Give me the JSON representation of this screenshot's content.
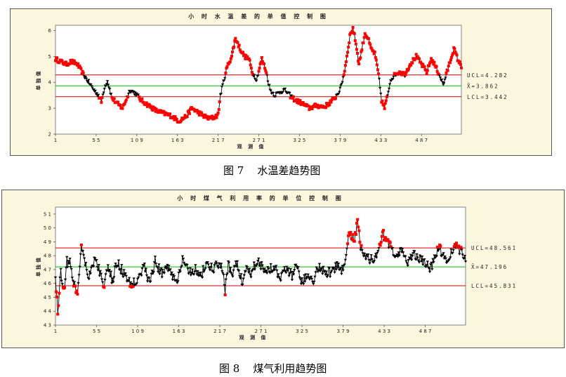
{
  "figures": [
    {
      "caption": "图 7    水温差趋势图",
      "chart_data": {
        "type": "line",
        "title": "小 时 水 温 差   的 单 值 控 制 图",
        "xlabel": "观 测 值",
        "ylabel": "单独值",
        "x_ticks": [
          1,
          55,
          109,
          163,
          217,
          271,
          325,
          379,
          433,
          487
        ],
        "y_ticks": [
          2,
          3,
          4,
          5,
          6
        ],
        "xlim": [
          1,
          540
        ],
        "ylim": [
          2,
          6.2
        ],
        "ucl": 4.282,
        "center": 3.862,
        "lcl": 3.442,
        "ucl_label": "UCL=4.282",
        "center_label": "X̄=3.862",
        "lcl_label": "LCL=3.442",
        "anchors": [
          [
            1,
            4.9
          ],
          [
            8,
            4.8
          ],
          [
            15,
            4.7
          ],
          [
            22,
            4.8
          ],
          [
            30,
            4.7
          ],
          [
            38,
            4.3
          ],
          [
            45,
            4.0
          ],
          [
            52,
            3.7
          ],
          [
            58,
            3.5
          ],
          [
            62,
            3.25
          ],
          [
            66,
            3.8
          ],
          [
            70,
            4.05
          ],
          [
            76,
            3.4
          ],
          [
            82,
            3.2
          ],
          [
            90,
            3.0
          ],
          [
            100,
            3.7
          ],
          [
            108,
            3.55
          ],
          [
            115,
            3.3
          ],
          [
            125,
            3.1
          ],
          [
            135,
            2.9
          ],
          [
            145,
            2.8
          ],
          [
            155,
            2.7
          ],
          [
            165,
            2.5
          ],
          [
            175,
            2.7
          ],
          [
            182,
            3.0
          ],
          [
            190,
            2.85
          ],
          [
            198,
            2.7
          ],
          [
            205,
            2.6
          ],
          [
            212,
            2.65
          ],
          [
            217,
            2.75
          ],
          [
            220,
            3.5
          ],
          [
            224,
            4.0
          ],
          [
            229,
            4.6
          ],
          [
            235,
            5.0
          ],
          [
            240,
            5.7
          ],
          [
            246,
            5.3
          ],
          [
            252,
            5.0
          ],
          [
            258,
            4.9
          ],
          [
            262,
            4.4
          ],
          [
            268,
            4.1
          ],
          [
            275,
            4.9
          ],
          [
            280,
            4.5
          ],
          [
            286,
            3.7
          ],
          [
            292,
            3.5
          ],
          [
            298,
            3.6
          ],
          [
            305,
            3.7
          ],
          [
            312,
            3.5
          ],
          [
            320,
            3.3
          ],
          [
            328,
            3.2
          ],
          [
            338,
            3.0
          ],
          [
            348,
            3.1
          ],
          [
            358,
            3.05
          ],
          [
            365,
            3.2
          ],
          [
            372,
            3.4
          ],
          [
            379,
            3.7
          ],
          [
            384,
            4.3
          ],
          [
            388,
            5.0
          ],
          [
            392,
            5.8
          ],
          [
            396,
            6.1
          ],
          [
            400,
            5.5
          ],
          [
            404,
            4.7
          ],
          [
            408,
            5.3
          ],
          [
            412,
            5.9
          ],
          [
            416,
            5.7
          ],
          [
            420,
            5.3
          ],
          [
            425,
            5.1
          ],
          [
            430,
            4.3
          ],
          [
            434,
            3.3
          ],
          [
            438,
            3.0
          ],
          [
            442,
            3.5
          ],
          [
            446,
            4.1
          ],
          [
            452,
            4.3
          ],
          [
            458,
            4.4
          ],
          [
            465,
            4.3
          ],
          [
            472,
            4.7
          ],
          [
            480,
            5.0
          ],
          [
            487,
            4.7
          ],
          [
            494,
            4.4
          ],
          [
            500,
            4.9
          ],
          [
            506,
            4.6
          ],
          [
            512,
            4.2
          ],
          [
            516,
            3.9
          ],
          [
            520,
            4.3
          ],
          [
            525,
            4.8
          ],
          [
            530,
            5.3
          ],
          [
            535,
            4.9
          ],
          [
            540,
            4.6
          ]
        ]
      }
    },
    {
      "caption": "图 8    煤气利用趋势图",
      "chart_data": {
        "type": "line",
        "title": "小 时 煤 气 利 用 率   的 单 位 控 制 图",
        "xlabel": "观 测 值",
        "ylabel": "单独值",
        "x_ticks": [
          1,
          55,
          109,
          163,
          217,
          271,
          325,
          379,
          433,
          487
        ],
        "y_ticks": [
          43,
          44,
          45,
          46,
          47,
          48,
          49,
          50,
          51
        ],
        "xlim": [
          1,
          540
        ],
        "ylim": [
          43,
          51.5
        ],
        "ucl": 48.561,
        "center": 47.196,
        "lcl": 45.831,
        "ucl_label": "UCL=48.561",
        "center_label": "X̄=47.196",
        "lcl_label": "LCL=45.831",
        "anchors": [
          [
            1,
            46.4
          ],
          [
            4,
            44.0
          ],
          [
            8,
            46.8
          ],
          [
            12,
            45.5
          ],
          [
            16,
            47.6
          ],
          [
            20,
            47.4
          ],
          [
            25,
            46.1
          ],
          [
            30,
            45.2
          ],
          [
            35,
            48.9
          ],
          [
            40,
            47.5
          ],
          [
            45,
            46.5
          ],
          [
            52,
            47.7
          ],
          [
            58,
            47.1
          ],
          [
            64,
            45.8
          ],
          [
            70,
            47.0
          ],
          [
            76,
            46.2
          ],
          [
            82,
            47.5
          ],
          [
            90,
            46.8
          ],
          [
            98,
            46.0
          ],
          [
            106,
            46.1
          ],
          [
            112,
            46.8
          ],
          [
            118,
            47.1
          ],
          [
            125,
            46.0
          ],
          [
            132,
            47.6
          ],
          [
            140,
            46.7
          ],
          [
            148,
            47.3
          ],
          [
            155,
            46.5
          ],
          [
            162,
            46.2
          ],
          [
            168,
            47.6
          ],
          [
            176,
            46.9
          ],
          [
            185,
            47.0
          ],
          [
            192,
            46.5
          ],
          [
            200,
            47.5
          ],
          [
            208,
            46.9
          ],
          [
            214,
            47.4
          ],
          [
            220,
            47.1
          ],
          [
            224,
            45.5
          ],
          [
            228,
            47.2
          ],
          [
            234,
            46.8
          ],
          [
            240,
            47.4
          ],
          [
            246,
            46.1
          ],
          [
            252,
            47.1
          ],
          [
            258,
            46.8
          ],
          [
            265,
            47.6
          ],
          [
            272,
            47.3
          ],
          [
            280,
            46.9
          ],
          [
            288,
            47.3
          ],
          [
            296,
            46.5
          ],
          [
            304,
            47.0
          ],
          [
            312,
            46.6
          ],
          [
            318,
            47.5
          ],
          [
            326,
            45.9
          ],
          [
            332,
            46.8
          ],
          [
            340,
            46.3
          ],
          [
            348,
            47.3
          ],
          [
            356,
            46.7
          ],
          [
            364,
            46.9
          ],
          [
            372,
            47.2
          ],
          [
            378,
            47.0
          ],
          [
            382,
            47.8
          ],
          [
            386,
            49.2
          ],
          [
            390,
            49.6
          ],
          [
            394,
            49.0
          ],
          [
            398,
            50.8
          ],
          [
            402,
            48.6
          ],
          [
            408,
            48.1
          ],
          [
            414,
            47.6
          ],
          [
            420,
            47.9
          ],
          [
            426,
            48.3
          ],
          [
            432,
            49.6
          ],
          [
            438,
            48.8
          ],
          [
            444,
            48.4
          ],
          [
            450,
            48.0
          ],
          [
            456,
            48.2
          ],
          [
            464,
            47.6
          ],
          [
            472,
            48.2
          ],
          [
            480,
            47.7
          ],
          [
            487,
            47.4
          ],
          [
            494,
            47.0
          ],
          [
            500,
            48.1
          ],
          [
            506,
            48.4
          ],
          [
            512,
            48.0
          ],
          [
            518,
            47.6
          ],
          [
            524,
            48.7
          ],
          [
            530,
            48.5
          ],
          [
            536,
            48.2
          ],
          [
            540,
            47.8
          ]
        ]
      }
    }
  ],
  "colors": {
    "panel_bg": "#fbf7de",
    "plot_bg": "#ffffff",
    "in_control": "#000000",
    "out_of_control": "#ff0000",
    "limit_line": "#cc0000",
    "center_line": "#00bb00"
  }
}
